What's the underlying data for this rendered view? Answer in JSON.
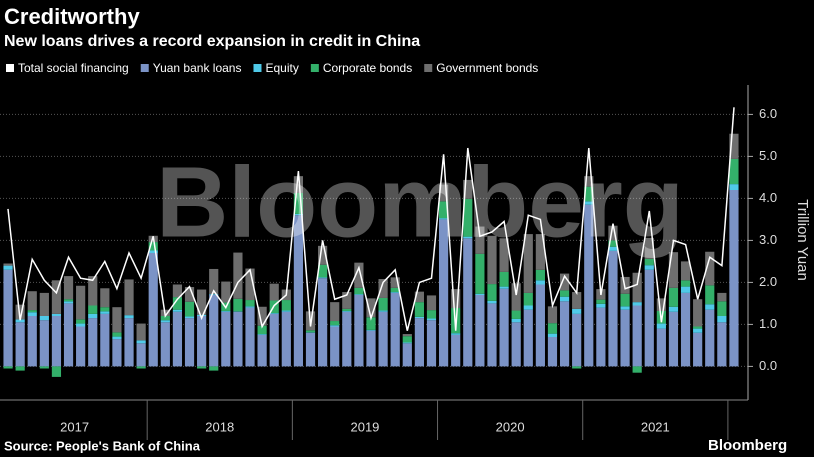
{
  "chart_data": {
    "type": "bar",
    "stacked": true,
    "title": "Creditworthy",
    "subtitle": "New loans drives a record expansion in credit in China",
    "y_axis_label": "Trillion Yuan",
    "source": "Source: People's Bank of China",
    "watermark": "Bloomberg",
    "logo": "Bloomberg",
    "categories": [
      null,
      null,
      null,
      null,
      null,
      null,
      null,
      null,
      null,
      null,
      null,
      null,
      null,
      null,
      null,
      null,
      null,
      null,
      null,
      null,
      null,
      null,
      null,
      null,
      null,
      null,
      null,
      null,
      null,
      null,
      null,
      null,
      null,
      null,
      null,
      null,
      null,
      null,
      null,
      null,
      null,
      null,
      null,
      null,
      null,
      null,
      null,
      null,
      null,
      null,
      null,
      null,
      null,
      null,
      null,
      null,
      null,
      null,
      null,
      null,
      null
    ],
    "year_labels": [
      "2017",
      "2018",
      "2019",
      "2020",
      "2021"
    ],
    "ylim": [
      -0.8,
      6.7
    ],
    "yticks": [
      {
        "value": 0,
        "label": "0.0"
      },
      {
        "value": 1,
        "label": "1.0"
      },
      {
        "value": 2,
        "label": "2.0"
      },
      {
        "value": 3,
        "label": "3.0"
      },
      {
        "value": 4,
        "label": "4.0"
      },
      {
        "value": 5,
        "label": "5.0"
      },
      {
        "value": 6,
        "label": "6.0"
      }
    ],
    "grid": true,
    "series": [
      {
        "name": "Total social financing",
        "type": "line",
        "color": "#ffffff",
        "values": [
          3.75,
          1.1,
          2.55,
          2.05,
          1.75,
          2.6,
          2.1,
          2.05,
          2.5,
          1.85,
          2.7,
          2.1,
          3.1,
          1.2,
          1.6,
          1.9,
          1.15,
          1.8,
          1.4,
          2.0,
          2.3,
          0.95,
          1.45,
          1.7,
          4.65,
          0.95,
          3.0,
          1.6,
          1.7,
          2.35,
          1.15,
          2.0,
          2.3,
          0.85,
          2.0,
          2.1,
          5.05,
          0.85,
          5.2,
          3.1,
          3.2,
          3.45,
          1.7,
          3.6,
          3.5,
          1.45,
          2.15,
          1.75,
          5.2,
          1.7,
          3.4,
          1.85,
          1.95,
          3.7,
          1.05,
          3.0,
          2.9,
          1.6,
          2.6,
          2.4,
          6.17
        ]
      },
      {
        "name": "Yuan bank loans",
        "type": "bar",
        "color": "#7b93c6",
        "values": [
          2.3,
          1.05,
          1.2,
          1.1,
          1.2,
          1.5,
          0.95,
          1.15,
          1.25,
          0.65,
          1.15,
          0.55,
          2.7,
          1.05,
          1.3,
          1.15,
          1.2,
          1.7,
          1.3,
          1.3,
          1.4,
          0.75,
          1.25,
          1.3,
          3.6,
          0.8,
          2.1,
          0.95,
          1.3,
          1.7,
          0.85,
          1.3,
          1.75,
          0.55,
          1.15,
          1.1,
          3.5,
          0.75,
          3.05,
          1.7,
          1.5,
          1.85,
          1.05,
          1.35,
          1.95,
          0.7,
          1.55,
          1.25,
          3.85,
          1.4,
          2.75,
          1.35,
          1.45,
          2.3,
          0.9,
          1.3,
          1.75,
          0.8,
          1.35,
          1.05,
          4.2
        ]
      },
      {
        "name": "Equity",
        "type": "bar",
        "color": "#4fc9e8",
        "values": [
          0.1,
          0.07,
          0.09,
          0.1,
          0.05,
          0.05,
          0.07,
          0.1,
          0.06,
          0.06,
          0.07,
          0.07,
          0.06,
          0.05,
          0.05,
          0.04,
          0.03,
          0.02,
          0.02,
          0.01,
          0.03,
          0.02,
          0.02,
          0.03,
          0.03,
          0.01,
          0.02,
          0.03,
          0.02,
          0.02,
          0.02,
          0.03,
          0.02,
          0.02,
          0.03,
          0.04,
          0.03,
          0.04,
          0.04,
          0.03,
          0.06,
          0.05,
          0.08,
          0.1,
          0.1,
          0.08,
          0.11,
          0.12,
          0.08,
          0.09,
          0.1,
          0.08,
          0.08,
          0.11,
          0.12,
          0.12,
          0.15,
          0.1,
          0.13,
          0.15,
          0.14
        ]
      },
      {
        "name": "Corporate bonds",
        "type": "bar",
        "color": "#33b06a",
        "values": [
          -0.05,
          -0.1,
          0.05,
          -0.05,
          -0.25,
          0.05,
          0.1,
          0.2,
          0.1,
          0.1,
          0.0,
          -0.05,
          0.2,
          0.1,
          0.3,
          0.35,
          -0.05,
          -0.1,
          0.2,
          0.3,
          0.15,
          0.2,
          0.3,
          0.25,
          0.5,
          0.05,
          0.3,
          0.1,
          0.05,
          0.15,
          0.3,
          0.3,
          0.1,
          0.15,
          0.35,
          0.2,
          0.4,
          0.6,
          0.9,
          0.95,
          0.4,
          0.35,
          0.2,
          0.3,
          0.25,
          0.25,
          0.15,
          -0.05,
          0.35,
          0.1,
          0.15,
          0.3,
          -0.15,
          0.15,
          0.3,
          0.45,
          0.15,
          0.05,
          0.45,
          0.35,
          0.6
        ]
      },
      {
        "name": "Government bonds",
        "type": "bar",
        "color": "#6e6e6e",
        "values": [
          0.05,
          0.35,
          0.45,
          0.55,
          0.8,
          0.55,
          0.8,
          0.7,
          0.45,
          0.6,
          0.85,
          0.4,
          0.15,
          0.15,
          0.3,
          0.35,
          0.6,
          0.6,
          0.5,
          1.1,
          0.75,
          0.45,
          0.4,
          0.25,
          0.4,
          0.45,
          0.45,
          0.45,
          0.4,
          0.6,
          0.45,
          0.45,
          0.25,
          0.05,
          0.25,
          0.35,
          0.4,
          0.45,
          0.45,
          0.65,
          1.15,
          0.8,
          0.65,
          1.4,
          0.85,
          0.4,
          0.4,
          0.4,
          0.25,
          0.25,
          0.35,
          0.4,
          0.7,
          0.5,
          0.3,
          0.85,
          0.45,
          0.65,
          0.8,
          0.2,
          0.6
        ]
      }
    ]
  }
}
